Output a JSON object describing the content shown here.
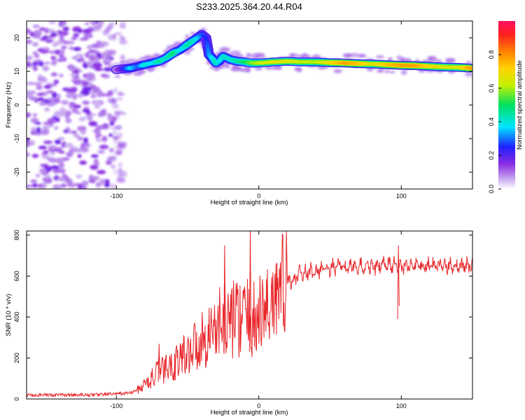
{
  "title": "S233.2025.364.20.44.R04",
  "chart_data": [
    {
      "type": "heatmap",
      "title": "S233.2025.364.20.44.R04",
      "xlabel": "Height of straight line (km)",
      "ylabel": "Frequency (Hz)",
      "xlim": [
        -163,
        150
      ],
      "ylim": [
        -25,
        25
      ],
      "xticks": [
        -100,
        0,
        100
      ],
      "yticks": [
        -20,
        -10,
        0,
        10,
        20
      ],
      "grid": false,
      "colorbar": {
        "label": "Normalized spectral amplitude",
        "range": [
          0,
          1
        ],
        "ticks": [
          "0.0",
          "0.2",
          "0.4",
          "0.6",
          "0.8"
        ],
        "colors": [
          "#ffffff",
          "#c8a8f0",
          "#8a2be2",
          "#2020ff",
          "#00e5ff",
          "#00e060",
          "#c8f000",
          "#ffd000",
          "#ff8000",
          "#ff2020",
          "#ff1060"
        ]
      },
      "noise_region_x": [
        -163,
        -95
      ],
      "ridge": {
        "x": [
          -100,
          -95,
          -90,
          -85,
          -80,
          -75,
          -70,
          -65,
          -60,
          -55,
          -50,
          -45,
          -40,
          -37,
          -35,
          -30,
          -28,
          -25,
          -20,
          -15,
          -10,
          -5,
          0,
          10,
          20,
          30,
          40,
          50,
          60,
          70,
          80,
          90,
          100,
          110,
          120,
          130,
          140,
          148
        ],
        "freq": [
          10.5,
          10.8,
          11.0,
          11.5,
          12.0,
          12.5,
          13.0,
          14.0,
          15.5,
          16.5,
          18.0,
          19.5,
          21.0,
          20.0,
          15.0,
          12.5,
          13.0,
          14.5,
          13.5,
          13.0,
          12.8,
          12.5,
          12.5,
          12.8,
          13.0,
          12.8,
          12.8,
          12.6,
          12.5,
          12.3,
          12.2,
          12.0,
          11.8,
          11.7,
          11.5,
          11.3,
          11.2,
          11.0
        ],
        "amplitude": [
          0.15,
          0.3,
          0.45,
          0.35,
          0.5,
          0.45,
          0.55,
          0.5,
          0.6,
          0.45,
          0.55,
          0.5,
          0.35,
          0.3,
          0.4,
          0.55,
          0.45,
          0.5,
          0.5,
          0.55,
          0.6,
          0.7,
          0.75,
          0.8,
          0.8,
          0.75,
          0.75,
          0.85,
          0.95,
          0.9,
          0.8,
          0.9,
          0.95,
          0.95,
          0.85,
          0.8,
          0.8,
          0.95
        ]
      }
    },
    {
      "type": "line",
      "xlabel": "Height of straight line (km)",
      "ylabel": "SNR (10 * v/v)",
      "xlim": [
        -163,
        150
      ],
      "ylim": [
        0,
        820
      ],
      "xticks": [
        -100,
        0,
        100
      ],
      "yticks": [
        0,
        200,
        400,
        600,
        800
      ],
      "color": "#e8262a",
      "grid": false,
      "series": [
        {
          "name": "SNR",
          "x": [
            -163,
            -140,
            -120,
            -100,
            -90,
            -85,
            -80,
            -75,
            -70,
            -65,
            -60,
            -55,
            -50,
            -45,
            -40,
            -35,
            -30,
            -25,
            -20,
            -15,
            -10,
            -5,
            0,
            5,
            10,
            15,
            20,
            25,
            30,
            40,
            50,
            60,
            70,
            80,
            90,
            100,
            110,
            120,
            130,
            140,
            150
          ],
          "values": [
            20,
            20,
            20,
            25,
            30,
            45,
            70,
            100,
            140,
            150,
            170,
            200,
            230,
            260,
            290,
            320,
            350,
            380,
            390,
            400,
            400,
            380,
            400,
            440,
            500,
            540,
            570,
            590,
            610,
            625,
            640,
            645,
            645,
            650,
            650,
            650,
            650,
            650,
            650,
            650,
            650
          ]
        }
      ],
      "spikes": [
        {
          "x": -70,
          "value": 270
        },
        {
          "x": -24,
          "value": 750
        },
        {
          "x": -6,
          "value": 820
        },
        {
          "x": 98,
          "value": 750
        }
      ]
    }
  ]
}
